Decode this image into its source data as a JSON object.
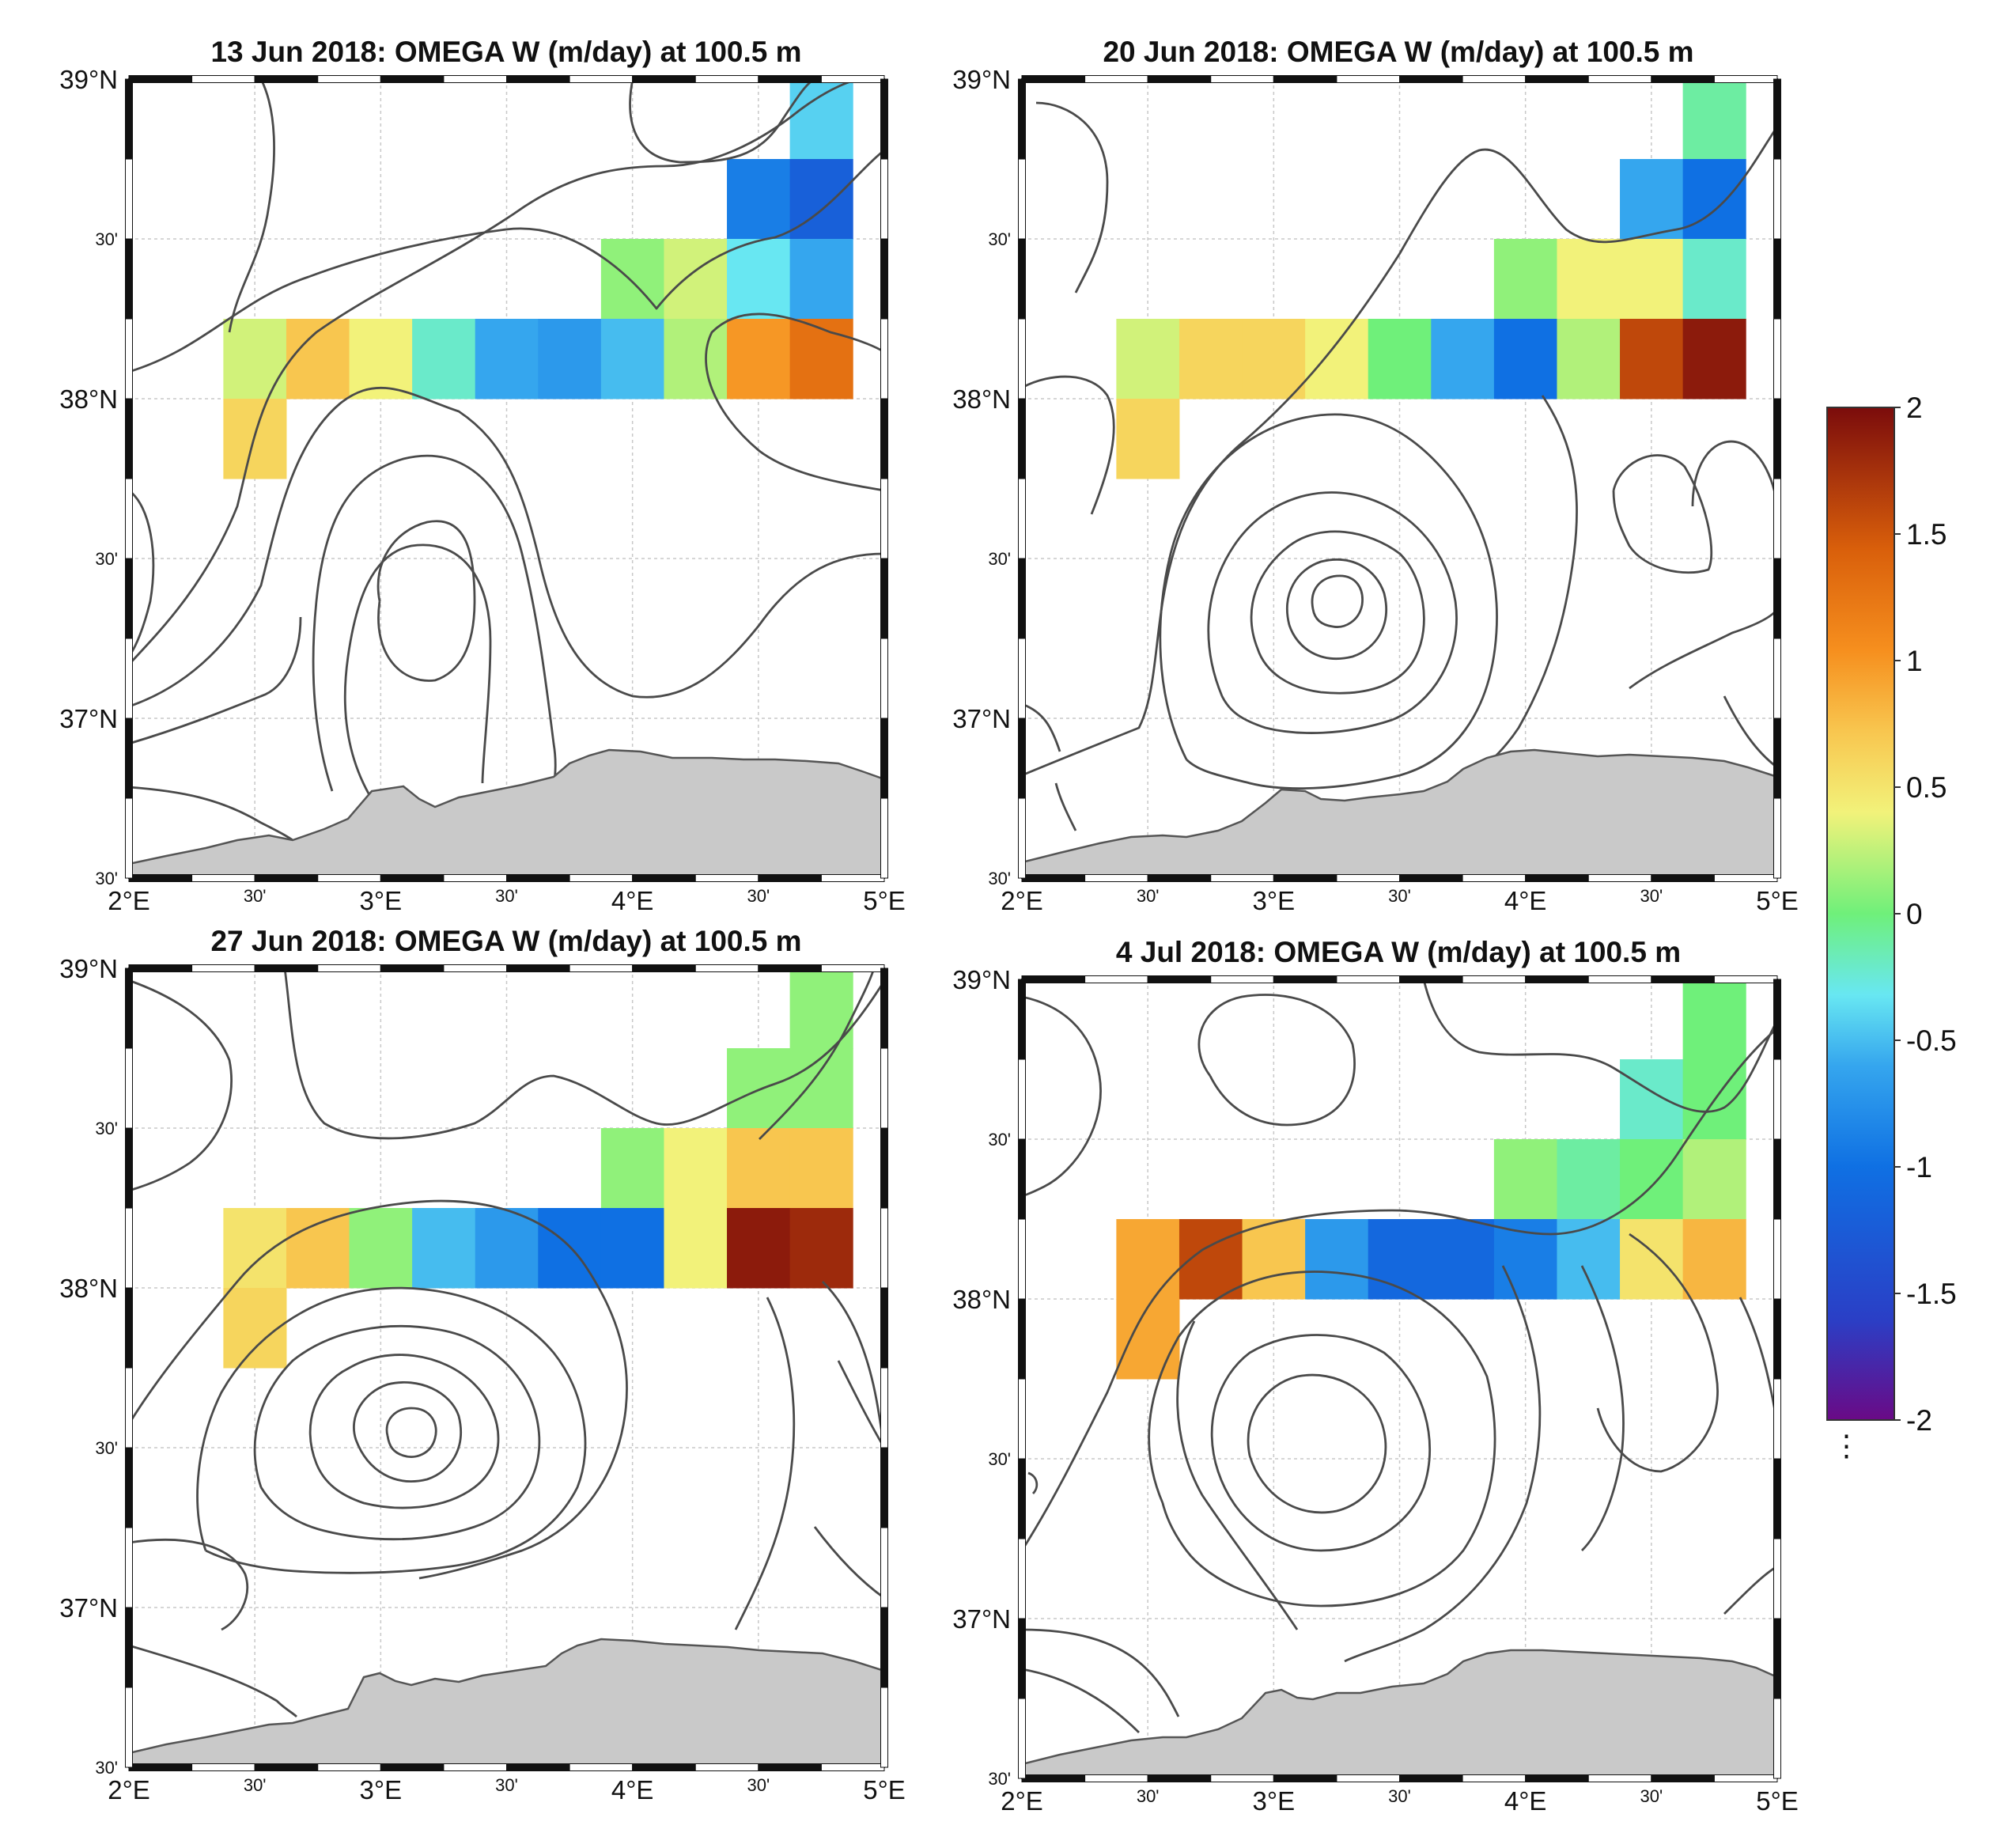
{
  "figure": {
    "panels": [
      {
        "id": "p1",
        "title": "13 Jun 2018: OMEGA W (m/day) at 100.5 m"
      },
      {
        "id": "p2",
        "title": "20 Jun 2018: OMEGA W (m/day) at 100.5 m"
      },
      {
        "id": "p3",
        "title": "27 Jun 2018: OMEGA W (m/day) at 100.5 m"
      },
      {
        "id": "p4",
        "title": "4 Jul 2018: OMEGA W (m/day) at 100.5 m"
      }
    ],
    "axes": {
      "lon_major_labels": [
        "2°E",
        "3°E",
        "4°E",
        "5°E"
      ],
      "lon_minor_label": "30'",
      "lat_major_labels": [
        "39°N",
        "38°N",
        "37°N"
      ],
      "lat_minor_label": "30'"
    },
    "colorbar": {
      "ticks": [
        2,
        1.5,
        1,
        0.5,
        0,
        -0.5,
        -1,
        -1.5,
        -2
      ],
      "tick_labels": [
        "2",
        "1.5",
        "1",
        "0.5",
        "0",
        "-0.5",
        "-1",
        "-1.5",
        "-2"
      ],
      "colors": [
        "#6a0a86",
        "#2a3fc6",
        "#0f70e3",
        "#35a6ee",
        "#68e7f2",
        "#6ff07a",
        "#f2f27a",
        "#f8c64f",
        "#f68f1e",
        "#d95f0b",
        "#7b0c0c"
      ]
    },
    "land_color": "#c9c9c9",
    "contour_color": "#4a4a4a"
  },
  "chart_data": [
    {
      "type": "heatmap",
      "title": "13 Jun 2018: OMEGA W (m/day) at 100.5 m",
      "x_range_deg_E": [
        2.0,
        5.0
      ],
      "y_range_deg_N": [
        36.5,
        39.0
      ],
      "cell_size_deg": 0.25,
      "colorbar_range": [
        -2,
        2
      ],
      "cells": [
        {
          "lon": 4.75,
          "lat": 38.875,
          "w": -0.4
        },
        {
          "lon": 4.5,
          "lat": 38.625,
          "w": -0.9
        },
        {
          "lon": 4.75,
          "lat": 38.625,
          "w": -1.2
        },
        {
          "lon": 4.0,
          "lat": 38.375,
          "w": 0.1
        },
        {
          "lon": 4.25,
          "lat": 38.375,
          "w": 0.3
        },
        {
          "lon": 4.5,
          "lat": 38.375,
          "w": -0.3
        },
        {
          "lon": 4.75,
          "lat": 38.375,
          "w": -0.6
        },
        {
          "lon": 2.5,
          "lat": 38.125,
          "w": 0.3
        },
        {
          "lon": 2.75,
          "lat": 38.125,
          "w": 0.7
        },
        {
          "lon": 3.0,
          "lat": 38.125,
          "w": 0.4
        },
        {
          "lon": 3.25,
          "lat": 38.125,
          "w": -0.2
        },
        {
          "lon": 3.5,
          "lat": 38.125,
          "w": -0.6
        },
        {
          "lon": 3.75,
          "lat": 38.125,
          "w": -0.7
        },
        {
          "lon": 4.0,
          "lat": 38.125,
          "w": -0.5
        },
        {
          "lon": 4.25,
          "lat": 38.125,
          "w": 0.2
        },
        {
          "lon": 4.5,
          "lat": 38.125,
          "w": 1.0
        },
        {
          "lon": 4.75,
          "lat": 38.125,
          "w": 1.3
        },
        {
          "lon": 2.5,
          "lat": 37.875,
          "w": 0.6
        }
      ]
    },
    {
      "type": "heatmap",
      "title": "20 Jun 2018: OMEGA W (m/day) at 100.5 m",
      "x_range_deg_E": [
        2.0,
        5.0
      ],
      "y_range_deg_N": [
        36.5,
        39.0
      ],
      "cell_size_deg": 0.25,
      "colorbar_range": [
        -2,
        2
      ],
      "cells": [
        {
          "lon": 4.75,
          "lat": 38.875,
          "w": -0.1
        },
        {
          "lon": 4.5,
          "lat": 38.625,
          "w": -0.6
        },
        {
          "lon": 4.75,
          "lat": 38.625,
          "w": -1.0
        },
        {
          "lon": 4.0,
          "lat": 38.375,
          "w": 0.1
        },
        {
          "lon": 4.25,
          "lat": 38.375,
          "w": 0.4
        },
        {
          "lon": 4.5,
          "lat": 38.375,
          "w": 0.4
        },
        {
          "lon": 4.75,
          "lat": 38.375,
          "w": -0.2
        },
        {
          "lon": 2.5,
          "lat": 38.125,
          "w": 0.3
        },
        {
          "lon": 2.75,
          "lat": 38.125,
          "w": 0.6
        },
        {
          "lon": 3.0,
          "lat": 38.125,
          "w": 0.6
        },
        {
          "lon": 3.25,
          "lat": 38.125,
          "w": 0.4
        },
        {
          "lon": 3.5,
          "lat": 38.125,
          "w": 0.0
        },
        {
          "lon": 3.75,
          "lat": 38.125,
          "w": -0.6
        },
        {
          "lon": 4.0,
          "lat": 38.125,
          "w": -1.0
        },
        {
          "lon": 4.25,
          "lat": 38.125,
          "w": 0.2
        },
        {
          "lon": 4.5,
          "lat": 38.125,
          "w": 1.6
        },
        {
          "lon": 4.75,
          "lat": 38.125,
          "w": 1.9
        },
        {
          "lon": 2.5,
          "lat": 37.875,
          "w": 0.6
        }
      ]
    },
    {
      "type": "heatmap",
      "title": "27 Jun 2018: OMEGA W (m/day) at 100.5 m",
      "x_range_deg_E": [
        2.0,
        5.0
      ],
      "y_range_deg_N": [
        36.5,
        39.0
      ],
      "cell_size_deg": 0.25,
      "colorbar_range": [
        -2,
        2
      ],
      "cells": [
        {
          "lon": 4.75,
          "lat": 38.875,
          "w": 0.1
        },
        {
          "lon": 4.5,
          "lat": 38.625,
          "w": 0.1
        },
        {
          "lon": 4.75,
          "lat": 38.625,
          "w": 0.1
        },
        {
          "lon": 4.0,
          "lat": 38.375,
          "w": 0.1
        },
        {
          "lon": 4.25,
          "lat": 38.375,
          "w": 0.4
        },
        {
          "lon": 4.5,
          "lat": 38.375,
          "w": 0.7
        },
        {
          "lon": 4.75,
          "lat": 38.375,
          "w": 0.7
        },
        {
          "lon": 2.5,
          "lat": 38.125,
          "w": 0.5
        },
        {
          "lon": 2.75,
          "lat": 38.125,
          "w": 0.7
        },
        {
          "lon": 3.0,
          "lat": 38.125,
          "w": 0.1
        },
        {
          "lon": 3.25,
          "lat": 38.125,
          "w": -0.5
        },
        {
          "lon": 3.5,
          "lat": 38.125,
          "w": -0.7
        },
        {
          "lon": 3.75,
          "lat": 38.125,
          "w": -1.0
        },
        {
          "lon": 4.0,
          "lat": 38.125,
          "w": -1.0
        },
        {
          "lon": 4.25,
          "lat": 38.125,
          "w": 0.4
        },
        {
          "lon": 4.5,
          "lat": 38.125,
          "w": 1.9
        },
        {
          "lon": 4.75,
          "lat": 38.125,
          "w": 1.8
        },
        {
          "lon": 2.5,
          "lat": 37.875,
          "w": 0.6
        }
      ]
    },
    {
      "type": "heatmap",
      "title": "4 Jul 2018: OMEGA W (m/day) at 100.5 m",
      "x_range_deg_E": [
        2.0,
        5.0
      ],
      "y_range_deg_N": [
        36.5,
        39.0
      ],
      "cell_size_deg": 0.25,
      "colorbar_range": [
        -2,
        2
      ],
      "cells": [
        {
          "lon": 4.75,
          "lat": 38.875,
          "w": 0.0
        },
        {
          "lon": 4.5,
          "lat": 38.625,
          "w": -0.2
        },
        {
          "lon": 4.75,
          "lat": 38.625,
          "w": 0.0
        },
        {
          "lon": 4.0,
          "lat": 38.375,
          "w": 0.1
        },
        {
          "lon": 4.25,
          "lat": 38.375,
          "w": -0.1
        },
        {
          "lon": 4.5,
          "lat": 38.375,
          "w": 0.0
        },
        {
          "lon": 4.75,
          "lat": 38.375,
          "w": 0.2
        },
        {
          "lon": 2.5,
          "lat": 38.125,
          "w": 0.9
        },
        {
          "lon": 2.75,
          "lat": 38.125,
          "w": 1.6
        },
        {
          "lon": 3.0,
          "lat": 38.125,
          "w": 0.7
        },
        {
          "lon": 3.25,
          "lat": 38.125,
          "w": -0.7
        },
        {
          "lon": 3.5,
          "lat": 38.125,
          "w": -1.1
        },
        {
          "lon": 3.75,
          "lat": 38.125,
          "w": -1.1
        },
        {
          "lon": 4.0,
          "lat": 38.125,
          "w": -0.9
        },
        {
          "lon": 4.25,
          "lat": 38.125,
          "w": -0.5
        },
        {
          "lon": 4.5,
          "lat": 38.125,
          "w": 0.5
        },
        {
          "lon": 4.75,
          "lat": 38.125,
          "w": 0.8
        },
        {
          "lon": 2.5,
          "lat": 37.875,
          "w": 0.9
        }
      ]
    }
  ]
}
